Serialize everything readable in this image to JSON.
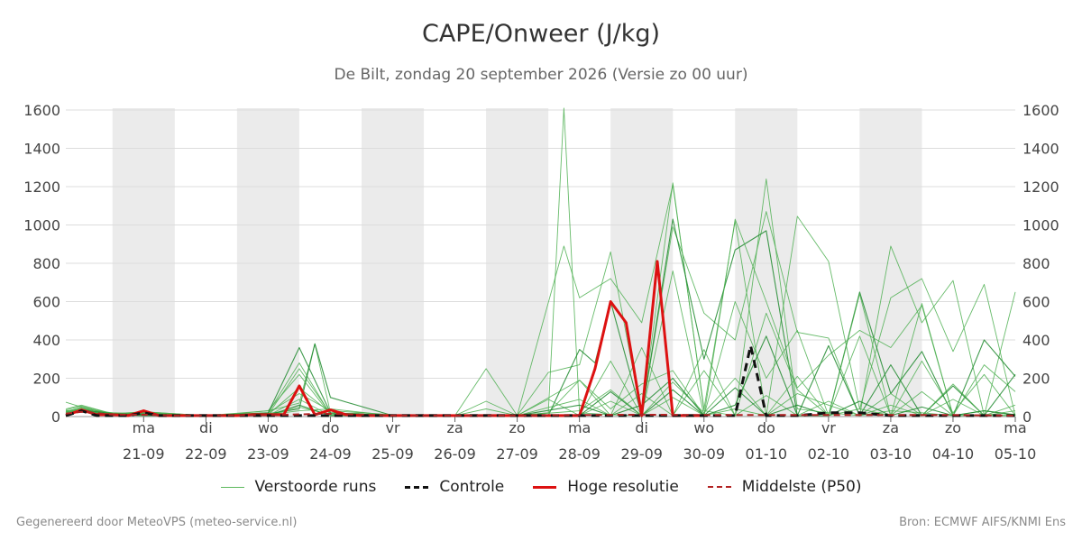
{
  "title": "CAPE/Onweer (J/kg)",
  "subtitle": "De Bilt, zondag 20 september 2026 (Versie zo 00 uur)",
  "footer": {
    "left": "Gegenereerd door MeteoVPS (meteo-service.nl)",
    "right": "Bron: ECMWF AIFS/KNMI Ens"
  },
  "legend": [
    {
      "label": "Verstoorde runs",
      "style": "thin-green"
    },
    {
      "label": "Controle",
      "style": "black-dashed"
    },
    {
      "label": "Hoge resolutie",
      "style": "red-solid"
    },
    {
      "label": "Middelste (P50)",
      "style": "darkred-dashed"
    }
  ],
  "colors": {
    "perturbed": "#4caf50",
    "perturbed_dark": "#1e8a2e",
    "control": "#111111",
    "hres": "#dd1111",
    "median": "#b22222",
    "weekend_band": "#ebebeb",
    "grid": "#dcdcdc"
  },
  "chart_data": {
    "type": "line",
    "title": "CAPE/Onweer (J/kg)",
    "xlabel": "",
    "ylabel": "",
    "ylim": [
      0,
      1600
    ],
    "yticks": [
      0,
      200,
      400,
      600,
      800,
      1000,
      1200,
      1400,
      1600
    ],
    "grid": true,
    "legend_position": "bottom",
    "x_unit": "day offset from 20-09-2026 00 UTC",
    "xlim": [
      -0.25,
      15
    ],
    "x_ticks": [
      {
        "x": 1,
        "day": "ma",
        "date": "21-09"
      },
      {
        "x": 2,
        "day": "di",
        "date": "22-09"
      },
      {
        "x": 3,
        "day": "wo",
        "date": "23-09"
      },
      {
        "x": 4,
        "day": "do",
        "date": "24-09"
      },
      {
        "x": 5,
        "day": "vr",
        "date": "25-09"
      },
      {
        "x": 6,
        "day": "za",
        "date": "26-09"
      },
      {
        "x": 7,
        "day": "zo",
        "date": "27-09"
      },
      {
        "x": 8,
        "day": "ma",
        "date": "28-09"
      },
      {
        "x": 9,
        "day": "di",
        "date": "29-09"
      },
      {
        "x": 10,
        "day": "wo",
        "date": "30-09"
      },
      {
        "x": 11,
        "day": "do",
        "date": "01-10"
      },
      {
        "x": 12,
        "day": "vr",
        "date": "02-10"
      },
      {
        "x": 13,
        "day": "za",
        "date": "03-10"
      },
      {
        "x": 14,
        "day": "zo",
        "date": "04-10"
      },
      {
        "x": 15,
        "day": "ma",
        "date": "05-10"
      }
    ],
    "weekend_bands": [
      [
        0.5,
        1.5
      ],
      [
        2.5,
        3.5
      ],
      [
        4.5,
        5.5
      ],
      [
        6.5,
        7.5
      ],
      [
        8.5,
        9.5
      ],
      [
        10.5,
        11.5
      ],
      [
        12.5,
        13.5
      ]
    ],
    "series": [
      {
        "name": "Hoge resolutie",
        "kind": "hres",
        "x": [
          -0.25,
          0,
          0.25,
          0.5,
          0.75,
          1,
          1.25,
          1.5,
          1.75,
          2,
          2.25,
          2.5,
          2.75,
          3,
          3.25,
          3.5,
          3.75,
          4,
          4.25,
          4.5,
          4.75,
          5,
          5.25,
          5.5,
          5.75,
          6,
          6.5,
          7,
          7.5,
          8,
          8.25,
          8.5,
          8.75,
          9,
          9.25,
          9.5,
          9.75,
          10
        ],
        "y": [
          5,
          35,
          10,
          10,
          5,
          30,
          5,
          5,
          5,
          5,
          5,
          5,
          10,
          10,
          10,
          160,
          10,
          35,
          10,
          5,
          5,
          5,
          5,
          5,
          5,
          5,
          5,
          5,
          5,
          5,
          250,
          600,
          490,
          5,
          810,
          5,
          5,
          5
        ]
      },
      {
        "name": "Controle",
        "kind": "control",
        "x": [
          -0.25,
          0,
          0.25,
          0.5,
          0.75,
          1,
          1.25,
          1.5,
          1.75,
          2,
          2.5,
          3,
          3.5,
          4,
          4.5,
          5,
          6,
          7,
          8,
          9,
          10,
          10.5,
          10.75,
          11,
          11.5,
          12,
          12.5,
          13,
          13.5,
          14,
          14.5,
          15
        ],
        "y": [
          5,
          30,
          5,
          5,
          5,
          20,
          5,
          5,
          5,
          5,
          5,
          5,
          5,
          5,
          5,
          5,
          5,
          5,
          5,
          5,
          5,
          5,
          370,
          5,
          5,
          20,
          20,
          5,
          5,
          5,
          5,
          5
        ]
      },
      {
        "name": "Middelste (P50)",
        "kind": "median",
        "x": [
          -0.25,
          0,
          0.5,
          1,
          1.5,
          2,
          3,
          4,
          5,
          6,
          7,
          8,
          9,
          10,
          11,
          12,
          13,
          14,
          15
        ],
        "y": [
          15,
          25,
          10,
          10,
          5,
          5,
          8,
          15,
          5,
          5,
          5,
          8,
          10,
          8,
          8,
          8,
          8,
          8,
          5
        ]
      }
    ],
    "ensemble": [
      {
        "x": [
          -0.25,
          0,
          0.5,
          1,
          1.5,
          2,
          2.5,
          3,
          3.5,
          3.75,
          4,
          4.5,
          5,
          5.5,
          6,
          6.5,
          7,
          7.5,
          7.75,
          8,
          8.5,
          9,
          9.5,
          10,
          10.5,
          11,
          11.5,
          12,
          12.5,
          13,
          13.5,
          14,
          14.5,
          15
        ],
        "y": [
          75,
          50,
          10,
          15,
          5,
          5,
          15,
          30,
          70,
          380,
          20,
          10,
          5,
          5,
          5,
          5,
          5,
          20,
          1610,
          20,
          10,
          5,
          1220,
          30,
          5,
          1240,
          40,
          20,
          5,
          30,
          20,
          5,
          10,
          5
        ]
      },
      {
        "x": [
          -0.25,
          0,
          0.5,
          1,
          1.5,
          2,
          2.5,
          3,
          3.5,
          4,
          4.5,
          5,
          6,
          7,
          7.75,
          8,
          8.5,
          9,
          9.5,
          10,
          10.5,
          11,
          11.5,
          12,
          12.5,
          13,
          13.5,
          14,
          14.5,
          15
        ],
        "y": [
          40,
          60,
          15,
          10,
          5,
          5,
          10,
          20,
          280,
          10,
          20,
          5,
          5,
          5,
          890,
          620,
          720,
          490,
          1210,
          40,
          1020,
          5,
          1045,
          810,
          40,
          620,
          720,
          340,
          690,
          5
        ]
      },
      {
        "x": [
          -0.25,
          0,
          0.5,
          1,
          2,
          3,
          3.5,
          4,
          5,
          6,
          6.5,
          7,
          7.5,
          8,
          8.5,
          9,
          9.5,
          10,
          10.5,
          11,
          11.5,
          12,
          12.5,
          13,
          13.5,
          14,
          14.5,
          15
        ],
        "y": [
          30,
          40,
          20,
          15,
          5,
          10,
          250,
          15,
          5,
          5,
          250,
          5,
          230,
          270,
          860,
          5,
          990,
          540,
          400,
          1070,
          440,
          410,
          5,
          890,
          490,
          710,
          5,
          650
        ]
      },
      {
        "x": [
          -0.25,
          0,
          0.5,
          1,
          2,
          3,
          3.5,
          3.75,
          4,
          5,
          6,
          7,
          7.5,
          8,
          8.25,
          8.5,
          9,
          9.5,
          10,
          10.5,
          11,
          11.5,
          12,
          12.5,
          13,
          13.5,
          14,
          14.5,
          15
        ],
        "y": [
          25,
          30,
          10,
          20,
          5,
          15,
          40,
          380,
          100,
          5,
          5,
          5,
          5,
          350,
          280,
          600,
          5,
          1030,
          300,
          870,
          970,
          5,
          5,
          650,
          120,
          340,
          5,
          400,
          210
        ]
      },
      {
        "x": [
          -0.25,
          0,
          0.5,
          1,
          2,
          3,
          3.5,
          4,
          5,
          6,
          6.5,
          7,
          7.5,
          8,
          8.5,
          9,
          9.5,
          10,
          10.5,
          11,
          11.5,
          12,
          12.5,
          13,
          13.5,
          14,
          14.5,
          15
        ],
        "y": [
          20,
          45,
          15,
          25,
          5,
          10,
          150,
          20,
          5,
          5,
          80,
          5,
          90,
          5,
          290,
          5,
          760,
          5,
          1030,
          600,
          150,
          320,
          450,
          360,
          580,
          5,
          270,
          130
        ]
      },
      {
        "x": [
          -0.25,
          0,
          0.5,
          1,
          2,
          3,
          3.5,
          4,
          5,
          6,
          7,
          7.5,
          8,
          8.5,
          9,
          9.5,
          10,
          10.5,
          11,
          11.5,
          12,
          12.5,
          13,
          13.5,
          14,
          14.5,
          15
        ],
        "y": [
          15,
          35,
          5,
          10,
          5,
          5,
          50,
          10,
          5,
          5,
          5,
          20,
          190,
          5,
          360,
          5,
          350,
          5,
          540,
          140,
          5,
          640,
          5,
          290,
          20,
          220,
          5
        ]
      },
      {
        "x": [
          -0.25,
          0,
          0.5,
          1,
          2,
          3,
          3.5,
          4,
          5,
          6,
          7,
          8,
          8.5,
          9,
          9.5,
          10,
          10.5,
          11,
          11.5,
          12,
          12.5,
          13,
          13.5,
          14,
          14.5,
          15
        ],
        "y": [
          35,
          55,
          15,
          20,
          5,
          20,
          120,
          30,
          10,
          5,
          5,
          190,
          40,
          170,
          240,
          5,
          600,
          200,
          450,
          5,
          420,
          5,
          590,
          5,
          5,
          5
        ]
      },
      {
        "x": [
          -0.25,
          0,
          0.5,
          1,
          2,
          3,
          3.5,
          4,
          5,
          6,
          7,
          8,
          8.5,
          9,
          9.5,
          10,
          10.5,
          11,
          11.5,
          12,
          12.5,
          13,
          13.5,
          14,
          14.5,
          15
        ],
        "y": [
          10,
          25,
          10,
          5,
          5,
          5,
          60,
          5,
          5,
          5,
          5,
          5,
          130,
          5,
          140,
          5,
          60,
          420,
          5,
          370,
          5,
          270,
          5,
          160,
          5,
          220
        ]
      },
      {
        "x": [
          -0.25,
          0,
          0.5,
          1,
          2,
          3,
          3.5,
          4,
          5,
          6,
          6.5,
          7,
          8,
          8.5,
          9,
          9.5,
          10,
          10.5,
          11,
          11.5,
          12,
          12.5,
          13,
          13.5,
          14,
          14.5,
          15
        ],
        "y": [
          30,
          30,
          20,
          10,
          5,
          30,
          220,
          10,
          5,
          5,
          40,
          5,
          5,
          80,
          5,
          180,
          20,
          200,
          5,
          120,
          60,
          5,
          120,
          5,
          170,
          5,
          30
        ]
      },
      {
        "x": [
          -0.25,
          0,
          0.5,
          1,
          2,
          3,
          3.5,
          4,
          5,
          6,
          7,
          8,
          8.5,
          9,
          9.5,
          10,
          10.5,
          11,
          11.5,
          12,
          12.5,
          13,
          13.5,
          14,
          14.5,
          15
        ],
        "y": [
          20,
          40,
          5,
          15,
          5,
          5,
          90,
          5,
          5,
          5,
          5,
          90,
          5,
          120,
          5,
          240,
          5,
          110,
          5,
          80,
          5,
          60,
          5,
          90,
          5,
          60
        ]
      },
      {
        "x": [
          -0.25,
          0,
          0.5,
          1,
          2,
          3,
          3.5,
          4,
          5,
          6,
          7,
          8,
          8.5,
          9,
          9.5,
          10,
          10.5,
          11,
          11.5,
          12,
          12.5,
          13,
          13.5,
          14,
          14.5,
          15
        ],
        "y": [
          25,
          50,
          10,
          25,
          5,
          10,
          30,
          40,
          5,
          5,
          5,
          30,
          140,
          5,
          100,
          5,
          40,
          5,
          210,
          5,
          40,
          5,
          130,
          5,
          30,
          5
        ]
      },
      {
        "x": [
          -0.25,
          0,
          0.5,
          1,
          2,
          3,
          3.5,
          4,
          5,
          6,
          7,
          8,
          8.5,
          9,
          9.5,
          10,
          10.5,
          11,
          11.5,
          12,
          12.5,
          13,
          13.5,
          14,
          14.5,
          15
        ],
        "y": [
          15,
          35,
          15,
          10,
          5,
          20,
          360,
          20,
          5,
          5,
          5,
          60,
          5,
          60,
          200,
          5,
          150,
          5,
          60,
          5,
          80,
          5,
          50,
          5,
          30,
          10
        ]
      }
    ]
  }
}
